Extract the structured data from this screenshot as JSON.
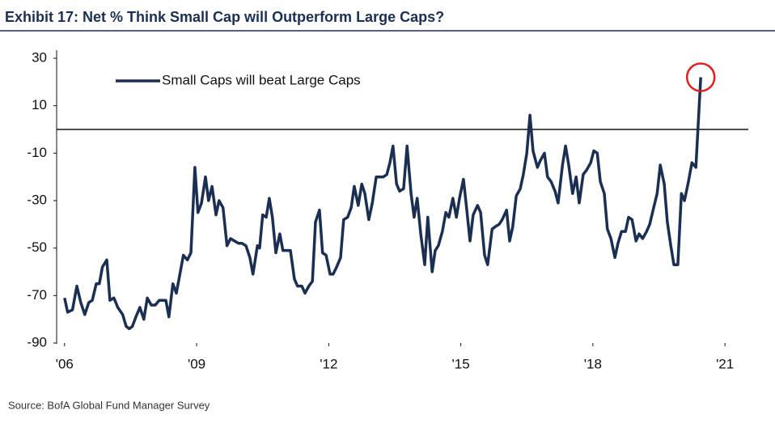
{
  "chart_data": {
    "type": "line",
    "title": "Exhibit 17: Net % Think Small Cap will Outperform Large Caps?",
    "source": "Source: BofA Global Fund Manager Survey",
    "xlim": [
      2005.82,
      2021.53
    ],
    "xticks": [
      {
        "value": 2006,
        "label": "'06"
      },
      {
        "value": 2009,
        "label": "'09"
      },
      {
        "value": 2012,
        "label": "'12"
      },
      {
        "value": 2015,
        "label": "'15"
      },
      {
        "value": 2018,
        "label": "'18"
      },
      {
        "value": 2021,
        "label": "'21"
      }
    ],
    "ylim": [
      -90,
      30
    ],
    "yticks": [
      30,
      10,
      -10,
      -30,
      -50,
      -70,
      -90
    ],
    "reference_line": 0,
    "legend": "upper-left",
    "x": [
      2006.0,
      2006.07,
      2006.18,
      2006.28,
      2006.37,
      2006.46,
      2006.55,
      2006.63,
      2006.72,
      2006.79,
      2006.86,
      2006.96,
      2007.03,
      2007.12,
      2007.21,
      2007.32,
      2007.4,
      2007.47,
      2007.54,
      2007.62,
      2007.71,
      2007.8,
      2007.88,
      2007.97,
      2008.06,
      2008.15,
      2008.22,
      2008.3,
      2008.37,
      2008.46,
      2008.54,
      2008.63,
      2008.7,
      2008.79,
      2008.87,
      2008.96,
      2009.03,
      2009.11,
      2009.2,
      2009.27,
      2009.35,
      2009.44,
      2009.51,
      2009.6,
      2009.69,
      2009.77,
      2009.86,
      2009.95,
      2010.03,
      2010.12,
      2010.21,
      2010.28,
      2010.38,
      2010.43,
      2010.5,
      2010.58,
      2010.65,
      2010.72,
      2010.8,
      2010.89,
      2010.96,
      2011.06,
      2011.13,
      2011.22,
      2011.29,
      2011.39,
      2011.46,
      2011.55,
      2011.63,
      2011.7,
      2011.79,
      2011.86,
      2011.94,
      2012.03,
      2012.1,
      2012.18,
      2012.27,
      2012.34,
      2012.43,
      2012.51,
      2012.58,
      2012.67,
      2012.75,
      2012.82,
      2012.91,
      2012.99,
      2013.08,
      2013.15,
      2013.24,
      2013.32,
      2013.39,
      2013.46,
      2013.54,
      2013.61,
      2013.7,
      2013.78,
      2013.87,
      2013.94,
      2014.01,
      2014.09,
      2014.18,
      2014.25,
      2014.35,
      2014.42,
      2014.49,
      2014.58,
      2014.66,
      2014.73,
      2014.82,
      2014.9,
      2014.97,
      2015.06,
      2015.12,
      2015.21,
      2015.28,
      2015.38,
      2015.45,
      2015.54,
      2015.61,
      2015.71,
      2015.78,
      2015.87,
      2015.94,
      2016.04,
      2016.11,
      2016.18,
      2016.26,
      2016.35,
      2016.42,
      2016.5,
      2016.57,
      2016.64,
      2016.74,
      2016.81,
      2016.9,
      2016.97,
      2017.05,
      2017.14,
      2017.21,
      2017.31,
      2017.38,
      2017.45,
      2017.54,
      2017.62,
      2017.69,
      2017.78,
      2017.86,
      2017.95,
      2018.02,
      2018.1,
      2018.17,
      2018.26,
      2018.33,
      2018.41,
      2018.5,
      2018.57,
      2018.65,
      2018.74,
      2018.81,
      2018.89,
      2018.98,
      2019.05,
      2019.13,
      2019.22,
      2019.29,
      2019.38,
      2019.46,
      2019.53,
      2019.62,
      2019.69,
      2019.77,
      2019.84,
      2019.93,
      2020.01,
      2020.08,
      2020.17,
      2020.25,
      2020.34,
      2020.45
    ],
    "series": [
      {
        "name": "Small Caps will beat Large Caps",
        "color": "#1b2f52",
        "values": [
          -71,
          -77,
          -76,
          -66,
          -73,
          -78,
          -73,
          -72,
          -65,
          -65,
          -58,
          -55,
          -72,
          -71,
          -75,
          -78,
          -83,
          -84,
          -83,
          -79,
          -75,
          -80,
          -71,
          -74,
          -74,
          -72,
          -72,
          -72,
          -79,
          -65,
          -69,
          -60,
          -53,
          -55,
          -52,
          -16,
          -35,
          -31,
          -20,
          -30,
          -24,
          -36,
          -30,
          -33,
          -49,
          -46,
          -47,
          -48,
          -48,
          -49,
          -54,
          -61,
          -49,
          -50,
          -36,
          -37,
          -29,
          -37,
          -52,
          -44,
          -51,
          -51,
          -51,
          -63,
          -66,
          -66,
          -69,
          -66,
          -64,
          -39,
          -34,
          -52,
          -53,
          -61,
          -61,
          -58,
          -54,
          -38,
          -37,
          -33,
          -24,
          -32,
          -23,
          -27,
          -38,
          -31,
          -20,
          -20,
          -20,
          -19,
          -14,
          -7,
          -23,
          -26,
          -25,
          -7,
          -27,
          -37,
          -29,
          -44,
          -57,
          -37,
          -60,
          -51,
          -49,
          -43,
          -35,
          -37,
          -29,
          -37,
          -29,
          -21,
          -31,
          -47,
          -36,
          -32,
          -35,
          -53,
          -57,
          -42,
          -41,
          -40,
          -38,
          -34,
          -47,
          -41,
          -28,
          -25,
          -19,
          -10,
          6,
          -9,
          -16,
          -13,
          -10,
          -20,
          -22,
          -26,
          -31,
          -15,
          -7,
          -15,
          -27,
          -20,
          -31,
          -19,
          -17,
          -14,
          -9,
          -10,
          -22,
          -27,
          -42,
          -46,
          -54,
          -48,
          -43,
          -43,
          -37,
          -38,
          -47,
          -44,
          -46,
          -43,
          -40,
          -33,
          -27,
          -15,
          -23,
          -39,
          -49,
          -57,
          -57,
          -27,
          -30,
          -22,
          -14,
          -16,
          22
        ]
      }
    ]
  }
}
